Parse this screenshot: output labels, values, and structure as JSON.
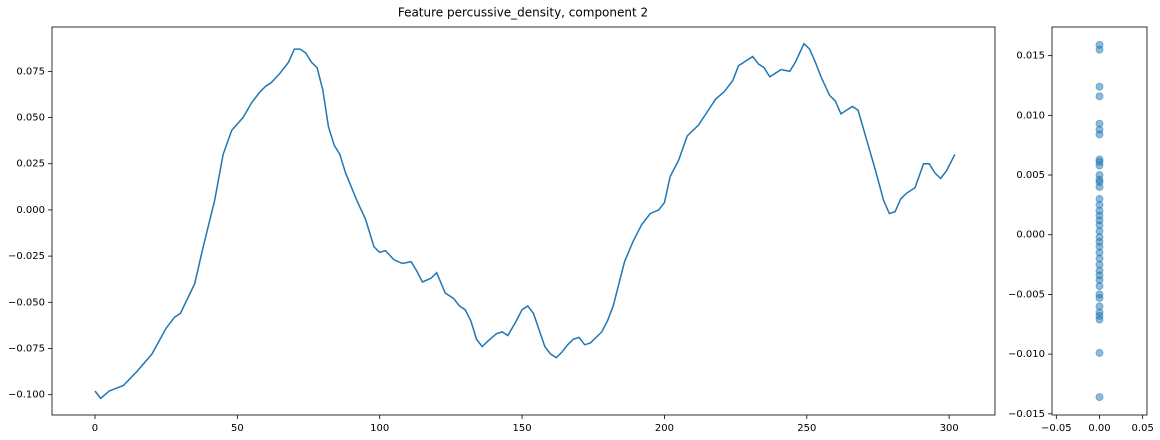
{
  "chart_data": [
    {
      "type": "line",
      "title": "Feature percussive_density, component 2",
      "color": "#1f77b4",
      "x": [
        0,
        2,
        5,
        10,
        15,
        20,
        25,
        28,
        30,
        35,
        38,
        42,
        45,
        48,
        52,
        55,
        58,
        60,
        62,
        65,
        68,
        70,
        72,
        74,
        76,
        78,
        80,
        82,
        84,
        86,
        88,
        92,
        95,
        98,
        100,
        102,
        105,
        108,
        111,
        113,
        115,
        118,
        120,
        123,
        126,
        128,
        130,
        132,
        134,
        136,
        138,
        141,
        143,
        145,
        148,
        150,
        152,
        154,
        156,
        158,
        160,
        162,
        164,
        166,
        168,
        170,
        172,
        174,
        176,
        178,
        180,
        182,
        184,
        186,
        189,
        192,
        195,
        198,
        200,
        202,
        205,
        208,
        212,
        215,
        218,
        221,
        224,
        226,
        229,
        231,
        233,
        235,
        237,
        239,
        241,
        244,
        246,
        249,
        251,
        253,
        255,
        258,
        260,
        262,
        264,
        266,
        268,
        271,
        274,
        277,
        279,
        281,
        283,
        285,
        288,
        291,
        293,
        295,
        297,
        299,
        302
      ],
      "values": [
        -0.098,
        -0.102,
        -0.098,
        -0.095,
        -0.087,
        -0.078,
        -0.064,
        -0.058,
        -0.056,
        -0.04,
        -0.02,
        0.005,
        0.03,
        0.043,
        0.05,
        0.058,
        0.064,
        0.067,
        0.069,
        0.074,
        0.08,
        0.087,
        0.087,
        0.085,
        0.08,
        0.077,
        0.065,
        0.045,
        0.035,
        0.03,
        0.02,
        0.005,
        -0.005,
        -0.02,
        -0.023,
        -0.022,
        -0.027,
        -0.029,
        -0.028,
        -0.033,
        -0.039,
        -0.037,
        -0.034,
        -0.045,
        -0.048,
        -0.052,
        -0.054,
        -0.06,
        -0.07,
        -0.074,
        -0.071,
        -0.067,
        -0.066,
        -0.068,
        -0.06,
        -0.054,
        -0.052,
        -0.056,
        -0.065,
        -0.074,
        -0.078,
        -0.08,
        -0.077,
        -0.073,
        -0.07,
        -0.069,
        -0.073,
        -0.072,
        -0.069,
        -0.066,
        -0.06,
        -0.052,
        -0.04,
        -0.028,
        -0.017,
        -0.008,
        -0.002,
        0.0,
        0.004,
        0.018,
        0.027,
        0.04,
        0.046,
        0.053,
        0.06,
        0.064,
        0.07,
        0.078,
        0.081,
        0.083,
        0.079,
        0.077,
        0.072,
        0.074,
        0.076,
        0.075,
        0.08,
        0.09,
        0.087,
        0.08,
        0.072,
        0.062,
        0.059,
        0.052,
        0.054,
        0.056,
        0.054,
        0.038,
        0.022,
        0.005,
        -0.002,
        -0.001,
        0.006,
        0.009,
        0.012,
        0.025,
        0.025,
        0.02,
        0.017,
        0.021,
        0.03
      ],
      "xlim": [
        -15.1,
        316.1
      ],
      "ylim": [
        -0.111,
        0.099
      ],
      "xticks": [
        0,
        50,
        100,
        150,
        200,
        250,
        300
      ],
      "yticks": [
        {
          "value": -0.1,
          "label": "−0.100"
        },
        {
          "value": -0.075,
          "label": "−0.075"
        },
        {
          "value": -0.05,
          "label": "−0.050"
        },
        {
          "value": -0.025,
          "label": "−0.025"
        },
        {
          "value": 0,
          "label": "0.000"
        },
        {
          "value": 0.025,
          "label": "0.025"
        },
        {
          "value": 0.05,
          "label": "0.050"
        },
        0.075
      ]
    },
    {
      "type": "scatter",
      "color": "#1f77b4",
      "x": [
        0,
        0,
        0,
        0,
        0,
        0,
        0,
        0,
        0,
        0,
        0,
        0,
        0,
        0,
        0,
        0,
        0,
        0,
        0,
        0,
        0,
        0,
        0,
        0,
        0,
        0,
        0,
        0,
        0,
        0,
        0,
        0,
        0,
        0,
        0,
        0,
        0,
        0,
        0
      ],
      "values": [
        0.0159,
        0.0155,
        0.0124,
        0.0116,
        0.0093,
        0.0088,
        0.0084,
        0.0063,
        0.0061,
        0.0058,
        0.005,
        0.0046,
        0.0044,
        0.004,
        0.003,
        0.0025,
        0.002,
        0.0016,
        0.0012,
        0.0008,
        0.0003,
        -0.0002,
        -0.0006,
        -0.001,
        -0.0015,
        -0.002,
        -0.0025,
        -0.003,
        -0.0034,
        -0.0038,
        -0.0043,
        -0.005,
        -0.0053,
        -0.006,
        -0.0065,
        -0.0068,
        -0.0071,
        -0.0099,
        -0.0136
      ],
      "xlim": [
        -0.055,
        0.055
      ],
      "ylim": [
        -0.0151,
        0.0174
      ],
      "xticks": [
        {
          "value": -0.05,
          "label": "−0.05"
        },
        {
          "value": 0,
          "label": "0.00"
        },
        0.05
      ],
      "yticks": [
        {
          "value": -0.015,
          "label": "−0.015"
        },
        {
          "value": -0.01,
          "label": "−0.010"
        },
        {
          "value": -0.005,
          "label": "−0.005"
        },
        {
          "value": 0,
          "label": "0.000"
        },
        {
          "value": 0.005,
          "label": "0.005"
        },
        {
          "value": 0.01,
          "label": "0.010"
        },
        0.015
      ]
    }
  ]
}
